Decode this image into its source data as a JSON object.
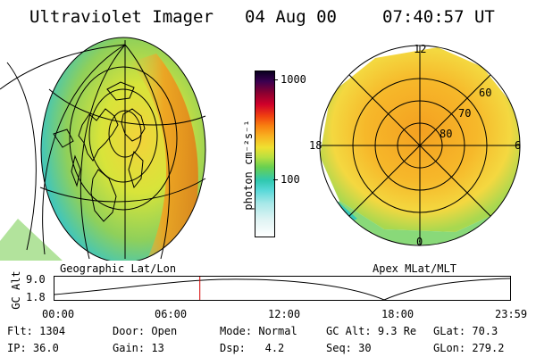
{
  "header": {
    "instrument": "Ultraviolet Imager",
    "date": "04 Aug 00",
    "time": "07:40:57 UT"
  },
  "left_panel": {
    "caption": "Geographic Lat/Lon"
  },
  "right_panel": {
    "caption": "Apex MLat/MLT",
    "mlt_labels": [
      "12",
      "18",
      "6",
      "0"
    ],
    "mlat_labels": [
      "60",
      "70",
      "80"
    ]
  },
  "colorbar": {
    "unit_label": "photon cm⁻²s⁻¹",
    "tick_labels": [
      "1000",
      "100"
    ]
  },
  "altitude_plot": {
    "axis_label": "GC Alt",
    "y_ticks": [
      "9.0",
      "1.8"
    ],
    "time_ticks": [
      "00:00",
      "06:00",
      "12:00",
      "18:00",
      "23:59"
    ],
    "current_time_marker": "07:41"
  },
  "info": {
    "row1": [
      {
        "label": "Flt:",
        "value": "1304"
      },
      {
        "label": "Door:",
        "value": "Open"
      },
      {
        "label": "Mode:",
        "value": "Normal"
      },
      {
        "label": "GC Alt:",
        "value": "9.3 Re"
      },
      {
        "label": "GLat:",
        "value": "70.3"
      }
    ],
    "row2": [
      {
        "label": "IP:",
        "value": "36.0"
      },
      {
        "label": "Gain:",
        "value": "13"
      },
      {
        "label": "Dsp:",
        "value": "4.2"
      },
      {
        "label": "Seq:",
        "value": "30"
      },
      {
        "label": "GLon:",
        "value": "279.2"
      }
    ]
  },
  "colors": {
    "marker": "#d40000"
  }
}
